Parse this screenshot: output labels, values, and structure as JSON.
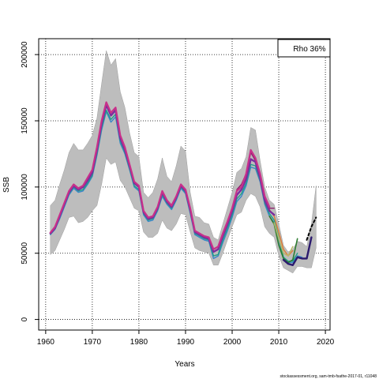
{
  "chart_data": {
    "type": "line",
    "xlabel": "Years",
    "ylabel": "SSB",
    "xlim": [
      1958.5,
      2021
    ],
    "ylim": [
      -8000,
      212000
    ],
    "xticks": [
      "1960",
      "1970",
      "1980",
      "1990",
      "2000",
      "2010",
      "2020"
    ],
    "yticks": [
      "0",
      "50000",
      "100000",
      "150000",
      "200000"
    ],
    "grid": true,
    "annotation": "Rho 36%",
    "credit": "stockassessment.org, sam-tmb-fsathe-2017-01, r11048",
    "band": {
      "x": [
        1961,
        1962,
        1963,
        1964,
        1965,
        1966,
        1967,
        1968,
        1969,
        1970,
        1971,
        1972,
        1973,
        1974,
        1975,
        1976,
        1977,
        1978,
        1979,
        1980,
        1981,
        1982,
        1983,
        1984,
        1985,
        1986,
        1987,
        1988,
        1989,
        1990,
        1991,
        1992,
        1993,
        1994,
        1995,
        1996,
        1997,
        1998,
        1999,
        2000,
        2001,
        2002,
        2003,
        2004,
        2005,
        2006,
        2007,
        2008,
        2009,
        2010,
        2011,
        2012,
        2013,
        2014,
        2015,
        2016,
        2017,
        2018
      ],
      "upper": [
        86000,
        90000,
        102000,
        113000,
        126000,
        133000,
        128000,
        128000,
        133000,
        139000,
        152000,
        178000,
        203000,
        192000,
        197000,
        172000,
        160000,
        141000,
        126000,
        123000,
        96000,
        92000,
        96000,
        106000,
        122000,
        108000,
        104000,
        116000,
        131000,
        127000,
        96000,
        78000,
        77000,
        73000,
        72000,
        62000,
        60000,
        72000,
        84000,
        96000,
        111000,
        114000,
        123000,
        145000,
        143000,
        120000,
        100000,
        90000,
        87000,
        72000,
        56000,
        51000,
        53000,
        59000,
        58000,
        55000,
        72000,
        101000
      ],
      "lower": [
        49000,
        52000,
        60000,
        68000,
        77000,
        78000,
        73000,
        74000,
        77000,
        82000,
        86000,
        102000,
        122000,
        117000,
        119000,
        105000,
        100000,
        92000,
        84000,
        82000,
        66000,
        62000,
        62000,
        65000,
        75000,
        69000,
        67000,
        72000,
        80000,
        79000,
        66000,
        54000,
        52000,
        51000,
        50000,
        41000,
        41000,
        50000,
        60000,
        70000,
        79000,
        81000,
        90000,
        95000,
        93000,
        85000,
        70000,
        65000,
        62000,
        48000,
        39000,
        37000,
        35000,
        40000,
        40000,
        39000,
        39000,
        54000
      ]
    },
    "series": [
      {
        "color": "#3a86c8",
        "width": 1.4,
        "dash": false,
        "x": [
          1961,
          1962,
          1963,
          1964,
          1965,
          1966,
          1967,
          1968,
          1969,
          1970,
          1971,
          1972,
          1973,
          1974,
          1975,
          1976,
          1977,
          1978,
          1979,
          1980,
          1981,
          1982,
          1983,
          1984,
          1985,
          1986,
          1987,
          1988,
          1989,
          1990,
          1991,
          1992,
          1993,
          1994,
          1995,
          1996,
          1997,
          1998,
          1999,
          2000,
          2001,
          2002,
          2003,
          2004,
          2005,
          2006,
          2007,
          2008,
          2009,
          2010,
          2011,
          2012,
          2013,
          2014,
          2015
        ],
        "y": [
          64000,
          68000,
          76000,
          85000,
          94000,
          99000,
          96000,
          97000,
          102000,
          108000,
          124000,
          143000,
          157000,
          149000,
          153000,
          133000,
          125000,
          113000,
          100000,
          97000,
          79000,
          74000,
          75000,
          82000,
          93000,
          87000,
          83000,
          90000,
          99000,
          95000,
          80000,
          64000,
          62000,
          60000,
          59000,
          46000,
          48000,
          58000,
          67000,
          77000,
          89000,
          93000,
          101000,
          115000,
          114000,
          104000,
          87000,
          78000,
          73000,
          60000,
          46000,
          43000,
          43000,
          48000,
          47000
        ]
      },
      {
        "color": "#1f9e89",
        "width": 1.4,
        "dash": false,
        "x": [
          1961,
          1962,
          1963,
          1964,
          1965,
          1966,
          1967,
          1968,
          1969,
          1970,
          1971,
          1972,
          1973,
          1974,
          1975,
          1976,
          1977,
          1978,
          1979,
          1980,
          1981,
          1982,
          1983,
          1984,
          1985,
          1986,
          1987,
          1988,
          1989,
          1990,
          1991,
          1992,
          1993,
          1994,
          1995,
          1996,
          1997,
          1998,
          1999,
          2000,
          2001,
          2002,
          2003,
          2004,
          2005,
          2006,
          2007,
          2008,
          2009,
          2010,
          2011,
          2012,
          2013,
          2014
        ],
        "y": [
          64500,
          68500,
          77000,
          86000,
          95000,
          100000,
          97000,
          98000,
          103000,
          109000,
          125000,
          145000,
          158000,
          151000,
          155000,
          135000,
          126000,
          114000,
          101000,
          98000,
          80000,
          75000,
          76000,
          83000,
          94000,
          88000,
          84000,
          91000,
          100000,
          96000,
          81000,
          65000,
          63000,
          61000,
          60000,
          48000,
          49000,
          60000,
          69000,
          79000,
          91000,
          95000,
          103000,
          117000,
          116000,
          105000,
          88000,
          80000,
          75000,
          62000,
          47000,
          44000,
          44000,
          50000
        ]
      },
      {
        "color": "#e07b39",
        "width": 1.4,
        "dash": false,
        "x": [
          2006,
          2007,
          2008,
          2009,
          2010,
          2011,
          2012,
          2013
        ],
        "y": [
          107000,
          93000,
          83000,
          78000,
          66000,
          53000,
          48000,
          52000
        ]
      },
      {
        "color": "#2e7d32",
        "width": 1.6,
        "dash": false,
        "x": [
          2008,
          2009,
          2010,
          2011,
          2012,
          2013,
          2014
        ],
        "y": [
          78000,
          72000,
          56000,
          46000,
          43000,
          45000,
          61000
        ]
      },
      {
        "color": "#b8b86a",
        "width": 1.6,
        "dash": false,
        "x": [
          2009,
          2010,
          2011,
          2012,
          2013
        ],
        "y": [
          73000,
          61000,
          50000,
          48000,
          55000
        ]
      },
      {
        "color": "#8e1f6b",
        "width": 1.4,
        "dash": false,
        "x": [
          2001,
          2002,
          2003,
          2004,
          2005,
          2006,
          2007,
          2008,
          2009
        ],
        "y": [
          98000,
          102000,
          110000,
          126000,
          120000,
          108000,
          92000,
          84000,
          84000
        ]
      },
      {
        "color": "#7b2d9e",
        "width": 2.4,
        "dash": false,
        "x": [
          1961,
          1962,
          1963,
          1964,
          1965,
          1966,
          1967,
          1968,
          1969,
          1970,
          1971,
          1972,
          1973,
          1974,
          1975,
          1976,
          1977,
          1978,
          1979,
          1980,
          1981,
          1982,
          1983,
          1984,
          1985,
          1986,
          1987,
          1988,
          1989,
          1990,
          1991,
          1992,
          1993,
          1994,
          1995,
          1996,
          1997,
          1998,
          1999,
          2000,
          2001,
          2002,
          2003,
          2004,
          2005,
          2006,
          2007,
          2008,
          2009
        ],
        "y": [
          65000,
          69000,
          78000,
          87000,
          96000,
          101000,
          98000,
          100000,
          105000,
          111000,
          128000,
          148000,
          162000,
          154000,
          158000,
          137000,
          128000,
          116000,
          103000,
          100000,
          81000,
          76000,
          77000,
          84000,
          96000,
          89000,
          85000,
          92000,
          101000,
          97000,
          83000,
          66000,
          64000,
          62000,
          61000,
          51000,
          53000,
          63000,
          72000,
          82000,
          94000,
          98000,
          106000,
          121000,
          119000,
          107000,
          90000,
          82000,
          79000
        ]
      },
      {
        "color": "#c8308a",
        "width": 2.2,
        "dash": false,
        "x": [
          1961,
          1962,
          1963,
          1964,
          1965,
          1966,
          1967,
          1968,
          1969,
          1970,
          1971,
          1972,
          1973,
          1974,
          1975,
          1976,
          1977,
          1978,
          1979,
          1980,
          1981,
          1982,
          1983,
          1984,
          1985,
          1986,
          1987,
          1988,
          1989,
          1990,
          1991,
          1992,
          1993,
          1994,
          1995,
          1996,
          1997,
          1998,
          1999,
          2000,
          2001,
          2002,
          2003,
          2004,
          2005,
          2006,
          2007,
          2008
        ],
        "y": [
          65500,
          70000,
          79000,
          88000,
          97000,
          102000,
          99000,
          101000,
          107000,
          113000,
          130000,
          150000,
          164000,
          156000,
          160000,
          139000,
          130000,
          117000,
          104000,
          101000,
          82000,
          77000,
          78000,
          85000,
          97000,
          90000,
          86000,
          93000,
          102000,
          98000,
          84000,
          67000,
          65000,
          63000,
          62000,
          53000,
          55000,
          65000,
          74000,
          84000,
          97000,
          100000,
          110000,
          128000,
          122000,
          110000,
          93000,
          85000
        ]
      },
      {
        "color": "#2b1a6e",
        "width": 2.4,
        "dash": false,
        "x": [
          2011,
          2012,
          2013,
          2014,
          2015,
          2016,
          2017
        ],
        "y": [
          45000,
          42000,
          41000,
          47000,
          46000,
          46000,
          62000
        ]
      },
      {
        "color": "#000000",
        "width": 2.0,
        "dash": true,
        "x": [
          2016,
          2017,
          2018
        ],
        "y": [
          60000,
          70000,
          77000
        ]
      }
    ]
  }
}
